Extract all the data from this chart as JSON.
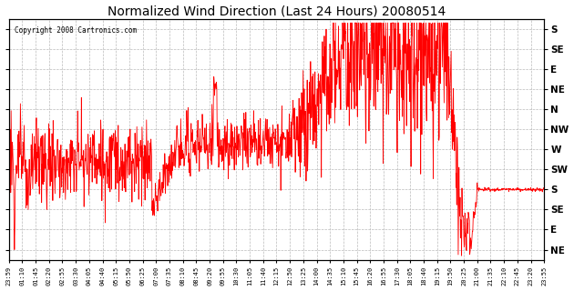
{
  "title": "Normalized Wind Direction (Last 24 Hours) 20080514",
  "copyright_text": "Copyright 2008 Cartronics.com",
  "line_color": "#ff0000",
  "bg_color": "#ffffff",
  "plot_bg_color": "#ffffff",
  "grid_color": "#aaaaaa",
  "ytick_labels_right": [
    "S",
    "SE",
    "E",
    "NE",
    "N",
    "NW",
    "W",
    "SW",
    "S",
    "SE",
    "E",
    "NE"
  ],
  "ytick_values": [
    0,
    1,
    2,
    3,
    4,
    5,
    6,
    7,
    8,
    9,
    10,
    11
  ],
  "ylim": [
    -0.5,
    11.5
  ],
  "xtick_labels": [
    "23:59",
    "01:10",
    "01:45",
    "02:20",
    "02:55",
    "03:30",
    "04:05",
    "04:40",
    "05:15",
    "05:50",
    "06:25",
    "07:00",
    "07:35",
    "08:10",
    "08:45",
    "09:20",
    "09:55",
    "10:30",
    "11:05",
    "11:40",
    "12:15",
    "12:50",
    "13:25",
    "14:00",
    "14:35",
    "15:10",
    "15:45",
    "16:20",
    "16:55",
    "17:30",
    "18:05",
    "18:40",
    "19:15",
    "19:50",
    "20:25",
    "21:00",
    "21:35",
    "22:10",
    "22:45",
    "23:20",
    "23:55"
  ]
}
